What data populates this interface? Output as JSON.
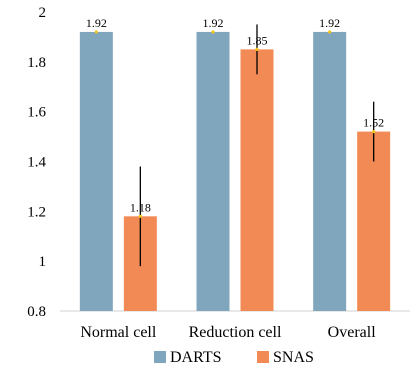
{
  "chart_data": {
    "type": "bar",
    "categories": [
      "Normal cell",
      "Reduction cell",
      "Overall"
    ],
    "series": [
      {
        "name": "DARTS",
        "values": [
          1.92,
          1.92,
          1.92
        ],
        "labels": [
          "1.92",
          "1.92",
          "1.92"
        ],
        "error": [
          0.0,
          0.0,
          0.0
        ],
        "color": "#7fa6bd"
      },
      {
        "name": "SNAS",
        "values": [
          1.18,
          1.85,
          1.52
        ],
        "labels": [
          "1.18",
          "1.85",
          "1.52"
        ],
        "error": [
          0.2,
          0.1,
          0.12
        ],
        "color": "#f28a55"
      }
    ],
    "ylim": [
      0.8,
      2.0
    ],
    "yticks": [
      "0.8",
      "1",
      "1.2",
      "1.4",
      "1.6",
      "1.8",
      "2"
    ],
    "grid": false,
    "legend_position": "bottom",
    "error_bars": true,
    "error_bar_color": "#000000",
    "marker_color": "#f5c518"
  }
}
